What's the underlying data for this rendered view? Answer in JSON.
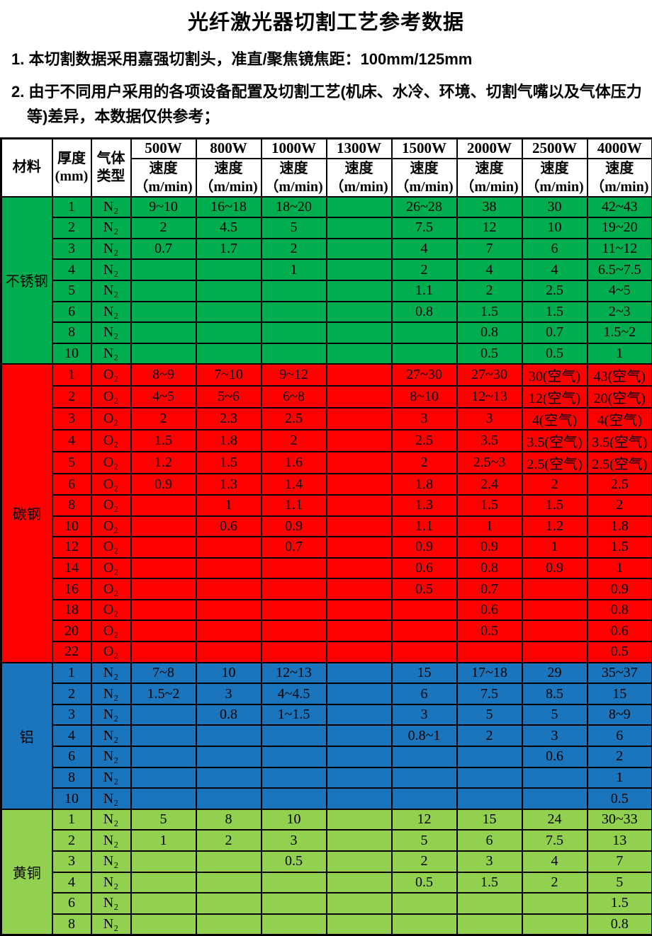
{
  "title": "光纤激光器切割工艺参考数据",
  "notes": [
    "1. 本切割数据采用嘉强切割头，准直/聚焦镜焦距：100mm/125mm",
    "2. 由于不同用户采用的各项设备配置及切割工艺(机床、水冷、环境、切割气嘴以及气体压力等)差异，本数据仅供参考；"
  ],
  "colors": {
    "stainless_steel": "#00AE50",
    "carbon_steel": "#FF0000",
    "aluminum": "#1B75BC",
    "brass": "#92D050",
    "border": "#000000",
    "header_bg": "#FFFFFF"
  },
  "table": {
    "header": {
      "material": "材料",
      "thickness": "厚度\n(mm)",
      "gas": "气体\n类型",
      "powers": [
        "500W",
        "800W",
        "1000W",
        "1300W",
        "1500W",
        "2000W",
        "2500W",
        "4000W"
      ],
      "speed": "速度\n（m/min)"
    },
    "sections": [
      {
        "material": "不锈钢",
        "color_key": "stainless_steel",
        "rows": [
          {
            "thickness": "1",
            "gas": "N₂",
            "speeds": [
              "9~10",
              "16~18",
              "18~20",
              "",
              "26~28",
              "38",
              "30",
              "42~43"
            ]
          },
          {
            "thickness": "2",
            "gas": "N₂",
            "speeds": [
              "2",
              "4.5",
              "5",
              "",
              "7.5",
              "12",
              "10",
              "19~20"
            ]
          },
          {
            "thickness": "3",
            "gas": "N₂",
            "speeds": [
              "0.7",
              "1.7",
              "2",
              "",
              "4",
              "7",
              "6",
              "11~12"
            ]
          },
          {
            "thickness": "4",
            "gas": "N₂",
            "speeds": [
              "",
              "",
              "1",
              "",
              "2",
              "4",
              "4",
              "6.5~7.5"
            ]
          },
          {
            "thickness": "5",
            "gas": "N₂",
            "speeds": [
              "",
              "",
              "",
              "",
              "1.1",
              "2",
              "2.5",
              "4~5"
            ]
          },
          {
            "thickness": "6",
            "gas": "N₂",
            "speeds": [
              "",
              "",
              "",
              "",
              "0.8",
              "1.5",
              "1.5",
              "2~3"
            ]
          },
          {
            "thickness": "8",
            "gas": "N₂",
            "speeds": [
              "",
              "",
              "",
              "",
              "",
              "0.8",
              "0.7",
              "1.5~2"
            ]
          },
          {
            "thickness": "10",
            "gas": "N₂",
            "speeds": [
              "",
              "",
              "",
              "",
              "",
              "0.5",
              "0.5",
              "1"
            ]
          }
        ]
      },
      {
        "material": "碳钢",
        "color_key": "carbon_steel",
        "rows": [
          {
            "thickness": "1",
            "gas": "O₂",
            "speeds": [
              "8~9",
              "7~10",
              "9~12",
              "",
              "27~30",
              "27~30",
              "30(空气)",
              "43(空气)"
            ]
          },
          {
            "thickness": "2",
            "gas": "O₂",
            "speeds": [
              "4~5",
              "5~6",
              "6~8",
              "",
              "8~10",
              "12~13",
              "12(空气)",
              "20(空气)"
            ]
          },
          {
            "thickness": "3",
            "gas": "O₂",
            "speeds": [
              "2",
              "2.3",
              "2.5",
              "",
              "3",
              "3",
              "4(空气)",
              "4(空气)"
            ]
          },
          {
            "thickness": "4",
            "gas": "O₂",
            "speeds": [
              "1.5",
              "1.8",
              "2",
              "",
              "2.5",
              "3.5",
              "3.5(空气)",
              "3.5(空气)"
            ]
          },
          {
            "thickness": "5",
            "gas": "O₂",
            "speeds": [
              "1.2",
              "1.5",
              "1.6",
              "",
              "2",
              "2.5~3",
              "2.5(空气)",
              "2.5(空气)"
            ]
          },
          {
            "thickness": "6",
            "gas": "O₂",
            "speeds": [
              "0.9",
              "1.3",
              "1.4",
              "",
              "1.8",
              "2.4",
              "2",
              "2.5"
            ]
          },
          {
            "thickness": "8",
            "gas": "O₂",
            "speeds": [
              "",
              "1",
              "1.1",
              "",
              "1.3",
              "1.5",
              "1.5",
              "2"
            ]
          },
          {
            "thickness": "10",
            "gas": "O₂",
            "speeds": [
              "",
              "0.6",
              "0.9",
              "",
              "1.1",
              "1",
              "1.2",
              "1.8"
            ]
          },
          {
            "thickness": "12",
            "gas": "O₂",
            "speeds": [
              "",
              "",
              "0.7",
              "",
              "0.9",
              "0.9",
              "1",
              "1.5"
            ]
          },
          {
            "thickness": "14",
            "gas": "O₂",
            "speeds": [
              "",
              "",
              "",
              "",
              "0.6",
              "0.8",
              "0.9",
              "1"
            ]
          },
          {
            "thickness": "16",
            "gas": "O₂",
            "speeds": [
              "",
              "",
              "",
              "",
              "0.5",
              "0.7",
              "",
              "0.9"
            ]
          },
          {
            "thickness": "18",
            "gas": "O₂",
            "speeds": [
              "",
              "",
              "",
              "",
              "",
              "0.6",
              "",
              "0.8"
            ]
          },
          {
            "thickness": "20",
            "gas": "O₂",
            "speeds": [
              "",
              "",
              "",
              "",
              "",
              "0.5",
              "",
              "0.6"
            ]
          },
          {
            "thickness": "22",
            "gas": "O₂",
            "speeds": [
              "",
              "",
              "",
              "",
              "",
              "",
              "",
              "0.5"
            ]
          }
        ]
      },
      {
        "material": "铝",
        "color_key": "aluminum",
        "rows": [
          {
            "thickness": "1",
            "gas": "N₂",
            "speeds": [
              "7~8",
              "10",
              "12~13",
              "",
              "15",
              "17~18",
              "29",
              "35~37"
            ]
          },
          {
            "thickness": "2",
            "gas": "N₂",
            "speeds": [
              "1.5~2",
              "3",
              "4~4.5",
              "",
              "6",
              "7.5",
              "8.5",
              "15"
            ]
          },
          {
            "thickness": "3",
            "gas": "N₂",
            "speeds": [
              "",
              "0.8",
              "1~1.5",
              "",
              "3",
              "5",
              "5",
              "8~9"
            ]
          },
          {
            "thickness": "4",
            "gas": "N₂",
            "speeds": [
              "",
              "",
              "",
              "",
              "0.8~1",
              "2",
              "3",
              "6"
            ]
          },
          {
            "thickness": "6",
            "gas": "N₂",
            "speeds": [
              "",
              "",
              "",
              "",
              "",
              "",
              "0.6",
              "2"
            ]
          },
          {
            "thickness": "8",
            "gas": "N₂",
            "speeds": [
              "",
              "",
              "",
              "",
              "",
              "",
              "",
              "1"
            ]
          },
          {
            "thickness": "10",
            "gas": "N₂",
            "speeds": [
              "",
              "",
              "",
              "",
              "",
              "",
              "",
              "0.5"
            ]
          }
        ]
      },
      {
        "material": "黄铜",
        "color_key": "brass",
        "rows": [
          {
            "thickness": "1",
            "gas": "N₂",
            "speeds": [
              "5",
              "8",
              "10",
              "",
              "12",
              "15",
              "24",
              "30~33"
            ]
          },
          {
            "thickness": "2",
            "gas": "N₂",
            "speeds": [
              "1",
              "2",
              "3",
              "",
              "5",
              "6",
              "7.5",
              "13"
            ]
          },
          {
            "thickness": "3",
            "gas": "N₂",
            "speeds": [
              "",
              "",
              "0.5",
              "",
              "2",
              "3",
              "4",
              "7"
            ]
          },
          {
            "thickness": "4",
            "gas": "N₂",
            "speeds": [
              "",
              "",
              "",
              "",
              "0.5",
              "1.5",
              "2",
              "5"
            ]
          },
          {
            "thickness": "6",
            "gas": "N₂",
            "speeds": [
              "",
              "",
              "",
              "",
              "",
              "",
              "",
              "1.5"
            ]
          },
          {
            "thickness": "8",
            "gas": "N₂",
            "speeds": [
              "",
              "",
              "",
              "",
              "",
              "",
              "",
              "0.8"
            ]
          }
        ]
      }
    ]
  }
}
